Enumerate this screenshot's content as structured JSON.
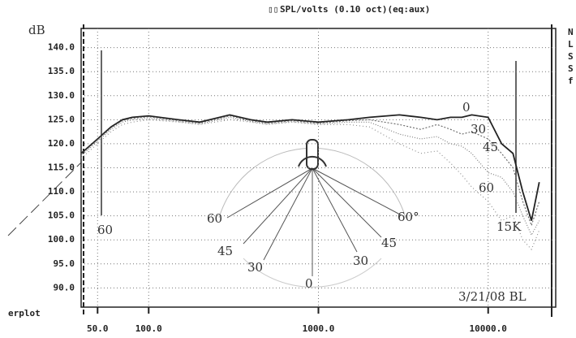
{
  "chart_data": {
    "type": "line",
    "title": "SPL/volts (0.10 oct)(eq:aux)",
    "y_label": "dB",
    "footer_label": "erplot",
    "side_labels": [
      "N",
      "L",
      "S",
      "S",
      "f"
    ],
    "log_x": true,
    "grid": true,
    "xlim": [
      40,
      25000
    ],
    "ylim": [
      86,
      144
    ],
    "xticks": [
      {
        "value": 50,
        "label": "50.0"
      },
      {
        "value": 100,
        "label": "100.0"
      },
      {
        "value": 1000,
        "label": "1000.0"
      },
      {
        "value": 10000,
        "label": "10000.0"
      }
    ],
    "yticks": [
      {
        "value": 90,
        "label": "90.0"
      },
      {
        "value": 95,
        "label": "95.0"
      },
      {
        "value": 100,
        "label": "100.0"
      },
      {
        "value": 105,
        "label": "105.0"
      },
      {
        "value": 110,
        "label": "110.0"
      },
      {
        "value": 115,
        "label": "115.0"
      },
      {
        "value": 120,
        "label": "120.0"
      },
      {
        "value": 125,
        "label": "125.0"
      },
      {
        "value": 130,
        "label": "130.0"
      },
      {
        "value": 135,
        "label": "135.0"
      },
      {
        "value": 140,
        "label": "140.0"
      }
    ],
    "x": [
      40,
      50,
      60,
      70,
      80,
      100,
      150,
      200,
      300,
      400,
      500,
      700,
      1000,
      1500,
      2000,
      3000,
      4000,
      5000,
      6000,
      7000,
      8000,
      10000,
      12000,
      14000,
      16000,
      18000,
      20000
    ],
    "series": [
      {
        "name": "0",
        "color": "#222222",
        "values": [
          118,
          121,
          123.5,
          125,
          125.5,
          125.8,
          125,
          124.5,
          126,
          125,
          124.5,
          125,
          124.5,
          125,
          125.5,
          126,
          125.5,
          125,
          125.5,
          125.5,
          126,
          125.5,
          120,
          118,
          110,
          104,
          112
        ]
      },
      {
        "name": "30",
        "color": "#666666",
        "values": [
          117.8,
          120.8,
          123.3,
          124.8,
          125.3,
          125.6,
          124.8,
          124.3,
          125.8,
          124.8,
          124.3,
          124.8,
          124.3,
          124.8,
          125,
          124,
          123,
          124,
          123,
          122,
          122.5,
          121,
          118,
          115,
          108,
          103,
          108
        ]
      },
      {
        "name": "45",
        "color": "#777777",
        "values": [
          117.5,
          120.5,
          123,
          124.5,
          125,
          125.3,
          124.6,
          124.1,
          125.5,
          124.6,
          124.1,
          124.6,
          124.1,
          124.5,
          124.5,
          122,
          121,
          121.5,
          120,
          119.5,
          118,
          114,
          113,
          110,
          105,
          101,
          104
        ]
      },
      {
        "name": "60",
        "color": "#888888",
        "values": [
          117,
          120,
          122.5,
          124,
          124.5,
          125,
          124.5,
          124,
          125,
          124.5,
          124,
          124.5,
          124,
          124,
          123.5,
          120,
          118,
          118.5,
          116,
          113.5,
          111,
          108,
          104,
          105,
          100,
          98,
          102
        ]
      }
    ],
    "annotations": [
      "60",
      "15K",
      "60",
      "45",
      "30",
      "0",
      "30",
      "45",
      "60°",
      "3/21/08 BL"
    ]
  }
}
